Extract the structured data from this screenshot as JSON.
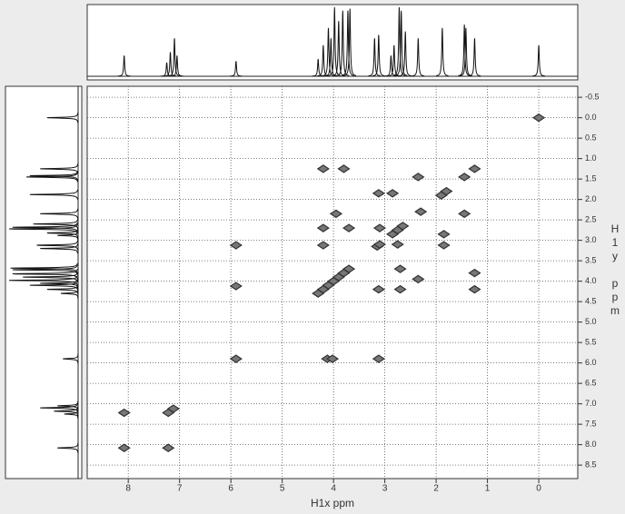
{
  "chart_data": {
    "type": "scatter",
    "x_label": "H1x ppm",
    "y_label": "H1y ppm",
    "xlim": [
      8.8,
      -0.76
    ],
    "ylim": [
      -0.77,
      8.83
    ],
    "xticks": [
      8,
      7,
      6,
      5,
      4,
      3,
      2,
      1,
      0
    ],
    "yticks": [
      -0.5,
      {
        "value": 0,
        "label": "0.0"
      },
      0.5,
      {
        "value": 1,
        "label": "1.0"
      },
      1.5,
      {
        "value": 2,
        "label": "2.0"
      },
      2.5,
      {
        "value": 3,
        "label": "3.0"
      },
      3.5,
      {
        "value": 4,
        "label": "4.0"
      },
      4.5,
      {
        "value": 5,
        "label": "5.0"
      },
      5.5,
      {
        "value": 6,
        "label": "6.0"
      },
      6.5,
      {
        "value": 7,
        "label": "7.0"
      },
      7.5,
      {
        "value": 8,
        "label": "8.0"
      },
      8.5
    ],
    "grid": true,
    "color": "#333333",
    "x": [
      8.08,
      7.22,
      7.12,
      5.9,
      4.3,
      4.2,
      4.1,
      4.0,
      3.9,
      3.8,
      3.7,
      3.15,
      3.1,
      2.85,
      2.75,
      2.65,
      2.3,
      1.9,
      1.8,
      1.45,
      1.25,
      0.0,
      8.08,
      7.22,
      5.9,
      4.12,
      4.02,
      5.9,
      3.12,
      4.2,
      3.8,
      1.25,
      1.25,
      1.45,
      2.35,
      3.95,
      2.35,
      1.85,
      2.85,
      1.85,
      3.12,
      2.7,
      4.2,
      2.7,
      3.7,
      4.2,
      3.12,
      3.1,
      2.75
    ],
    "y": [
      8.08,
      7.22,
      7.12,
      5.9,
      4.3,
      4.2,
      4.1,
      4.0,
      3.9,
      3.8,
      3.7,
      3.15,
      3.1,
      2.85,
      2.75,
      2.65,
      2.3,
      1.9,
      1.8,
      1.45,
      1.25,
      0.0,
      7.22,
      8.08,
      4.12,
      5.9,
      5.9,
      3.12,
      5.9,
      1.25,
      1.25,
      3.8,
      4.2,
      2.35,
      1.45,
      2.35,
      3.95,
      2.85,
      1.85,
      3.12,
      1.85,
      4.2,
      2.7,
      3.7,
      2.7,
      3.12,
      4.2,
      2.7,
      3.1
    ],
    "projection": {
      "x": [
        8.08,
        7.25,
        7.18,
        7.1,
        7.05,
        5.9,
        4.3,
        4.2,
        4.1,
        4.05,
        3.98,
        3.9,
        3.82,
        3.72,
        3.68,
        3.2,
        3.12,
        2.88,
        2.82,
        2.72,
        2.68,
        2.6,
        2.35,
        1.88,
        1.45,
        1.42,
        1.25,
        0.0
      ],
      "values": [
        0.3,
        0.2,
        0.35,
        0.55,
        0.3,
        0.22,
        0.25,
        0.45,
        0.7,
        0.55,
        1.0,
        0.8,
        0.95,
        0.95,
        0.98,
        0.55,
        0.6,
        0.3,
        0.45,
        1.0,
        0.95,
        0.65,
        0.55,
        0.7,
        0.75,
        0.7,
        0.55,
        0.45
      ]
    }
  }
}
